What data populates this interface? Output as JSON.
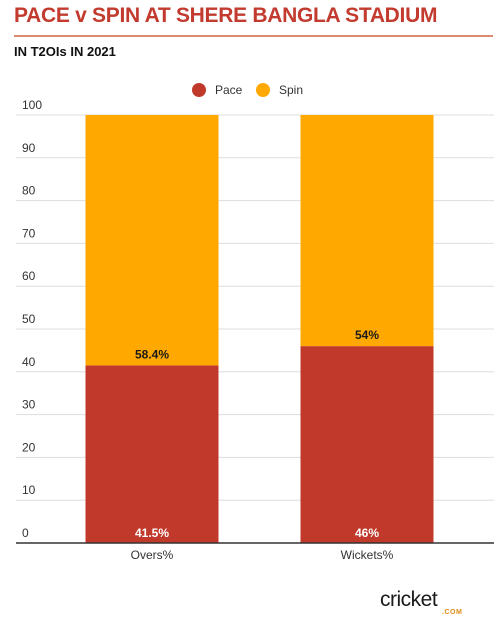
{
  "title": "PACE v SPIN AT SHERE BANGLA STADIUM",
  "subtitle": "IN T2OIs IN 2021",
  "logo": {
    "word": "cricket",
    "suffix": ".COM"
  },
  "colors": {
    "pace": "#c0392b",
    "spin": "#ffa800",
    "title": "#c23b2e",
    "grid": "#dddddd"
  },
  "chart_data": {
    "type": "bar",
    "stacked": true,
    "categories": [
      "Overs%",
      "Wickets%"
    ],
    "series": [
      {
        "name": "Pace",
        "values": [
          41.5,
          46
        ],
        "labels": [
          "41.5%",
          "46%"
        ],
        "color": "#c0392b"
      },
      {
        "name": "Spin",
        "values": [
          58.4,
          54
        ],
        "labels": [
          "58.4%",
          "54%"
        ],
        "color": "#ffa800"
      }
    ],
    "yticks": [
      "0",
      "10",
      "20",
      "30",
      "40",
      "50",
      "60",
      "70",
      "80",
      "90",
      "100"
    ],
    "ylim": [
      0,
      100
    ],
    "grid": true,
    "legend": "top-center"
  }
}
